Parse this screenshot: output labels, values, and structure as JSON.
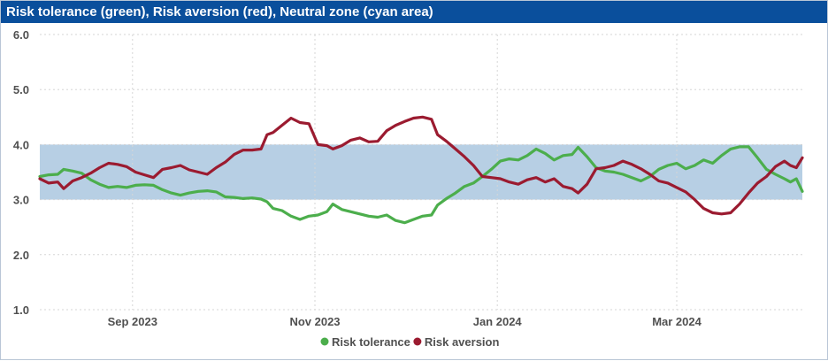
{
  "title": "Risk tolerance (green), Risk aversion (red), Neutral zone (cyan area)",
  "colors": {
    "header_bg": "#0a4f9c",
    "tolerance": "#4cae4c",
    "aversion": "#9b1b30",
    "neutral_zone": "#b7cfe4",
    "grid": "#d6d6d6"
  },
  "chart_data": {
    "type": "line",
    "title": "Risk tolerance (green), Risk aversion (red), Neutral zone (cyan area)",
    "xlabel": "",
    "ylabel": "",
    "ylim": [
      1.0,
      6.0
    ],
    "yticks": [
      "1.0",
      "2.0",
      "3.0",
      "4.0",
      "5.0",
      "6.0"
    ],
    "xlim": [
      "2023-08-01",
      "2024-04-12"
    ],
    "xticks": [
      {
        "date": "2023-09-01",
        "label": "Sep 2023"
      },
      {
        "date": "2023-11-01",
        "label": "Nov 2023"
      },
      {
        "date": "2024-01-01",
        "label": "Jan 2024"
      },
      {
        "date": "2024-03-01",
        "label": "Mar 2024"
      }
    ],
    "grid": true,
    "legend": "bottom-center",
    "band": {
      "y0": 3.0,
      "y1": 4.0,
      "label": "Neutral zone"
    },
    "series": [
      {
        "name": "Risk tolerance",
        "points": [
          [
            "2023-08-01",
            3.42
          ],
          [
            "2023-08-04",
            3.45
          ],
          [
            "2023-08-07",
            3.46
          ],
          [
            "2023-08-09",
            3.55
          ],
          [
            "2023-08-12",
            3.52
          ],
          [
            "2023-08-15",
            3.48
          ],
          [
            "2023-08-18",
            3.36
          ],
          [
            "2023-08-21",
            3.28
          ],
          [
            "2023-08-24",
            3.22
          ],
          [
            "2023-08-27",
            3.24
          ],
          [
            "2023-08-30",
            3.22
          ],
          [
            "2023-09-02",
            3.26
          ],
          [
            "2023-09-05",
            3.27
          ],
          [
            "2023-09-08",
            3.26
          ],
          [
            "2023-09-11",
            3.18
          ],
          [
            "2023-09-14",
            3.12
          ],
          [
            "2023-09-17",
            3.08
          ],
          [
            "2023-09-20",
            3.12
          ],
          [
            "2023-09-23",
            3.15
          ],
          [
            "2023-09-26",
            3.16
          ],
          [
            "2023-09-29",
            3.14
          ],
          [
            "2023-10-02",
            3.05
          ],
          [
            "2023-10-05",
            3.04
          ],
          [
            "2023-10-08",
            3.02
          ],
          [
            "2023-10-11",
            3.03
          ],
          [
            "2023-10-14",
            3.01
          ],
          [
            "2023-10-16",
            2.96
          ],
          [
            "2023-10-18",
            2.84
          ],
          [
            "2023-10-21",
            2.8
          ],
          [
            "2023-10-24",
            2.7
          ],
          [
            "2023-10-27",
            2.64
          ],
          [
            "2023-10-30",
            2.7
          ],
          [
            "2023-11-02",
            2.72
          ],
          [
            "2023-11-05",
            2.78
          ],
          [
            "2023-11-07",
            2.92
          ],
          [
            "2023-11-10",
            2.82
          ],
          [
            "2023-11-13",
            2.78
          ],
          [
            "2023-11-16",
            2.74
          ],
          [
            "2023-11-19",
            2.7
          ],
          [
            "2023-11-22",
            2.68
          ],
          [
            "2023-11-25",
            2.72
          ],
          [
            "2023-11-28",
            2.62
          ],
          [
            "2023-12-01",
            2.58
          ],
          [
            "2023-12-04",
            2.64
          ],
          [
            "2023-12-07",
            2.7
          ],
          [
            "2023-12-10",
            2.72
          ],
          [
            "2023-12-12",
            2.9
          ],
          [
            "2023-12-15",
            3.02
          ],
          [
            "2023-12-18",
            3.12
          ],
          [
            "2023-12-21",
            3.24
          ],
          [
            "2023-12-24",
            3.3
          ],
          [
            "2023-12-27",
            3.42
          ],
          [
            "2023-12-30",
            3.55
          ],
          [
            "2024-01-02",
            3.7
          ],
          [
            "2024-01-05",
            3.74
          ],
          [
            "2024-01-08",
            3.72
          ],
          [
            "2024-01-11",
            3.8
          ],
          [
            "2024-01-14",
            3.92
          ],
          [
            "2024-01-17",
            3.84
          ],
          [
            "2024-01-20",
            3.72
          ],
          [
            "2024-01-23",
            3.8
          ],
          [
            "2024-01-26",
            3.82
          ],
          [
            "2024-01-28",
            3.95
          ],
          [
            "2024-01-31",
            3.78
          ],
          [
            "2024-02-03",
            3.58
          ],
          [
            "2024-02-06",
            3.52
          ],
          [
            "2024-02-09",
            3.5
          ],
          [
            "2024-02-12",
            3.46
          ],
          [
            "2024-02-15",
            3.4
          ],
          [
            "2024-02-18",
            3.34
          ],
          [
            "2024-02-21",
            3.42
          ],
          [
            "2024-02-24",
            3.55
          ],
          [
            "2024-02-27",
            3.62
          ],
          [
            "2024-03-01",
            3.66
          ],
          [
            "2024-03-04",
            3.56
          ],
          [
            "2024-03-07",
            3.62
          ],
          [
            "2024-03-10",
            3.72
          ],
          [
            "2024-03-13",
            3.66
          ],
          [
            "2024-03-16",
            3.8
          ],
          [
            "2024-03-19",
            3.92
          ],
          [
            "2024-03-22",
            3.96
          ],
          [
            "2024-03-25",
            3.96
          ],
          [
            "2024-03-28",
            3.76
          ],
          [
            "2024-03-31",
            3.55
          ],
          [
            "2024-04-03",
            3.46
          ],
          [
            "2024-04-06",
            3.38
          ],
          [
            "2024-04-08",
            3.32
          ],
          [
            "2024-04-10",
            3.38
          ],
          [
            "2024-04-12",
            3.15
          ]
        ]
      },
      {
        "name": "Risk aversion",
        "points": [
          [
            "2023-08-01",
            3.38
          ],
          [
            "2023-08-04",
            3.3
          ],
          [
            "2023-08-07",
            3.32
          ],
          [
            "2023-08-09",
            3.2
          ],
          [
            "2023-08-12",
            3.34
          ],
          [
            "2023-08-15",
            3.4
          ],
          [
            "2023-08-18",
            3.48
          ],
          [
            "2023-08-21",
            3.58
          ],
          [
            "2023-08-24",
            3.66
          ],
          [
            "2023-08-27",
            3.64
          ],
          [
            "2023-08-30",
            3.6
          ],
          [
            "2023-09-02",
            3.5
          ],
          [
            "2023-09-05",
            3.45
          ],
          [
            "2023-09-08",
            3.4
          ],
          [
            "2023-09-11",
            3.55
          ],
          [
            "2023-09-14",
            3.58
          ],
          [
            "2023-09-17",
            3.62
          ],
          [
            "2023-09-20",
            3.54
          ],
          [
            "2023-09-23",
            3.5
          ],
          [
            "2023-09-26",
            3.46
          ],
          [
            "2023-09-29",
            3.58
          ],
          [
            "2023-10-02",
            3.68
          ],
          [
            "2023-10-05",
            3.82
          ],
          [
            "2023-10-08",
            3.9
          ],
          [
            "2023-10-11",
            3.9
          ],
          [
            "2023-10-14",
            3.92
          ],
          [
            "2023-10-16",
            4.18
          ],
          [
            "2023-10-18",
            4.22
          ],
          [
            "2023-10-21",
            4.35
          ],
          [
            "2023-10-24",
            4.48
          ],
          [
            "2023-10-27",
            4.4
          ],
          [
            "2023-10-30",
            4.38
          ],
          [
            "2023-11-02",
            4.0
          ],
          [
            "2023-11-05",
            3.98
          ],
          [
            "2023-11-07",
            3.92
          ],
          [
            "2023-11-10",
            3.98
          ],
          [
            "2023-11-13",
            4.08
          ],
          [
            "2023-11-16",
            4.12
          ],
          [
            "2023-11-19",
            4.05
          ],
          [
            "2023-11-22",
            4.06
          ],
          [
            "2023-11-25",
            4.25
          ],
          [
            "2023-11-28",
            4.35
          ],
          [
            "2023-12-01",
            4.42
          ],
          [
            "2023-12-04",
            4.48
          ],
          [
            "2023-12-07",
            4.5
          ],
          [
            "2023-12-10",
            4.46
          ],
          [
            "2023-12-12",
            4.18
          ],
          [
            "2023-12-15",
            4.06
          ],
          [
            "2023-12-18",
            3.92
          ],
          [
            "2023-12-21",
            3.78
          ],
          [
            "2023-12-24",
            3.62
          ],
          [
            "2023-12-27",
            3.42
          ],
          [
            "2023-12-30",
            3.4
          ],
          [
            "2024-01-02",
            3.38
          ],
          [
            "2024-01-05",
            3.32
          ],
          [
            "2024-01-08",
            3.28
          ],
          [
            "2024-01-11",
            3.36
          ],
          [
            "2024-01-14",
            3.4
          ],
          [
            "2024-01-17",
            3.32
          ],
          [
            "2024-01-20",
            3.38
          ],
          [
            "2024-01-23",
            3.24
          ],
          [
            "2024-01-26",
            3.2
          ],
          [
            "2024-01-28",
            3.12
          ],
          [
            "2024-01-31",
            3.28
          ],
          [
            "2024-02-03",
            3.56
          ],
          [
            "2024-02-06",
            3.58
          ],
          [
            "2024-02-09",
            3.62
          ],
          [
            "2024-02-12",
            3.7
          ],
          [
            "2024-02-15",
            3.64
          ],
          [
            "2024-02-18",
            3.56
          ],
          [
            "2024-02-21",
            3.46
          ],
          [
            "2024-02-24",
            3.34
          ],
          [
            "2024-02-27",
            3.3
          ],
          [
            "2024-03-01",
            3.22
          ],
          [
            "2024-03-04",
            3.14
          ],
          [
            "2024-03-07",
            3.0
          ],
          [
            "2024-03-10",
            2.84
          ],
          [
            "2024-03-13",
            2.76
          ],
          [
            "2024-03-16",
            2.74
          ],
          [
            "2024-03-19",
            2.76
          ],
          [
            "2024-03-22",
            2.92
          ],
          [
            "2024-03-25",
            3.12
          ],
          [
            "2024-03-28",
            3.3
          ],
          [
            "2024-03-31",
            3.42
          ],
          [
            "2024-04-03",
            3.6
          ],
          [
            "2024-04-06",
            3.7
          ],
          [
            "2024-04-08",
            3.62
          ],
          [
            "2024-04-10",
            3.58
          ],
          [
            "2024-04-12",
            3.76
          ]
        ]
      }
    ]
  }
}
